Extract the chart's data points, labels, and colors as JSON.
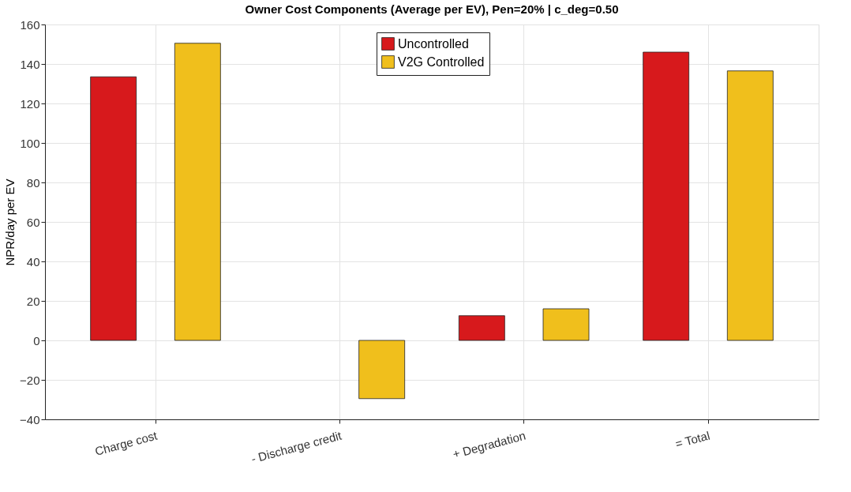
{
  "chart_data": {
    "type": "bar",
    "title": "Owner Cost Components (Average per EV), Pen=20% | c_deg=0.50",
    "ylabel": "NPR/day per EV",
    "categories": [
      "Charge cost",
      "- Discharge credit",
      "+ Degradation",
      "= Total"
    ],
    "series": [
      {
        "name": "Uncontrolled",
        "color": "#d7191c",
        "values": [
          133.5,
          null,
          12.5,
          146
        ]
      },
      {
        "name": "V2G Controlled",
        "color": "#f0bf1c",
        "values": [
          150.5,
          -29.5,
          16,
          136.5
        ]
      }
    ],
    "ylim": [
      -40,
      160
    ],
    "yticks": [
      -40,
      -20,
      0,
      20,
      40,
      60,
      80,
      100,
      120,
      140,
      160
    ],
    "grid": true,
    "legend": "top"
  }
}
